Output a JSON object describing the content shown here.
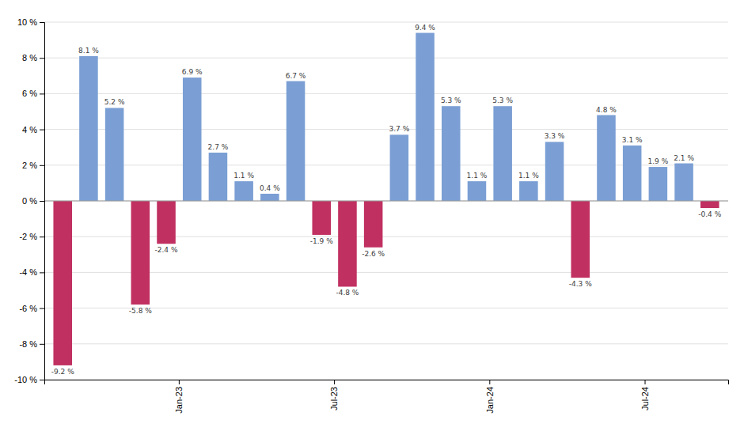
{
  "chart_data": {
    "type": "bar",
    "categories": [
      null,
      null,
      null,
      null,
      null,
      "Jan-23",
      null,
      null,
      null,
      null,
      null,
      "Jul-23",
      null,
      null,
      null,
      null,
      null,
      "Jan-24",
      null,
      null,
      null,
      null,
      null,
      "Jul-24",
      null,
      null
    ],
    "values": [
      -9.2,
      8.1,
      5.2,
      -5.8,
      -2.4,
      6.9,
      2.7,
      1.1,
      0.4,
      6.7,
      -1.9,
      -4.8,
      -2.6,
      3.7,
      9.4,
      5.3,
      1.1,
      5.3,
      1.1,
      3.3,
      -4.3,
      4.8,
      3.1,
      1.9,
      2.1,
      -0.4
    ],
    "value_labels": [
      "-9.2 %",
      "8.1 %",
      "5.2 %",
      "-5.8 %",
      "-2.4 %",
      "6.9 %",
      "2.7 %",
      "1.1 %",
      "0.4 %",
      "6.7 %",
      "-1.9 %",
      "-4.8 %",
      "-2.6 %",
      "3.7 %",
      "9.4 %",
      "5.3 %",
      "1.1 %",
      "5.3 %",
      "1.1 %",
      "3.3 %",
      "-4.3 %",
      "4.8 %",
      "3.1 %",
      "1.9 %",
      "2.1 %",
      "-0.4 %"
    ],
    "colors": [
      "#C03060",
      "#7B9FD4",
      "#7B9FD4",
      "#C03060",
      "#C03060",
      "#7B9FD4",
      "#7B9FD4",
      "#7B9FD4",
      "#7B9FD4",
      "#7B9FD4",
      "#C03060",
      "#C03060",
      "#C03060",
      "#7B9FD4",
      "#7B9FD4",
      "#7B9FD4",
      "#7B9FD4",
      "#7B9FD4",
      "#7B9FD4",
      "#7B9FD4",
      "#C03060",
      "#7B9FD4",
      "#7B9FD4",
      "#7B9FD4",
      "#7B9FD4",
      "#C03060"
    ],
    "ylim": [
      -10,
      10
    ],
    "yticks": [
      {
        "value": -10,
        "label": "-10 %"
      },
      {
        "value": -8,
        "label": "-8 %"
      },
      {
        "value": -6,
        "label": "-6 %"
      },
      {
        "value": -4,
        "label": "-4 %"
      },
      {
        "value": -2,
        "label": "-2 %"
      },
      {
        "value": 0,
        "label": "0 %"
      },
      {
        "value": 2,
        "label": "2 %"
      },
      {
        "value": 4,
        "label": "4 %"
      },
      {
        "value": 6,
        "label": "6 %"
      },
      {
        "value": 8,
        "label": "8 %"
      },
      {
        "value": 10,
        "label": "10 %"
      }
    ],
    "grid": true,
    "data_labels": true
  }
}
